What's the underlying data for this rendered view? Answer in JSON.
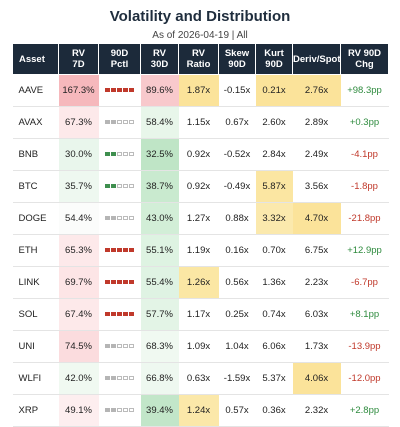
{
  "title": "Volatility and Distribution",
  "subtitle": "As of 2026-04-19 | All",
  "columns": [
    "Asset",
    "RV\n7D",
    "90D\nPctl",
    "RV\n30D",
    "RV\nRatio",
    "Skew\n90D",
    "Kurt\n90D",
    "Deriv/Spot",
    "RV 90D\nChg"
  ],
  "rows": [
    {
      "asset": "AAVE",
      "rv7d": "167.3%",
      "pctl": 5,
      "pctl_color": "red",
      "rv30d": "89.6%",
      "ratio": "1.87x",
      "skew": "-0.15x",
      "kurt": "0.21x",
      "deriv": "2.76x",
      "chg": "+98.3pp"
    },
    {
      "asset": "AVAX",
      "rv7d": "67.3%",
      "pctl": 0,
      "pctl_color": "gray",
      "rv30d": "58.4%",
      "ratio": "1.15x",
      "skew": "0.67x",
      "kurt": "2.60x",
      "deriv": "2.89x",
      "chg": "+0.3pp"
    },
    {
      "asset": "BNB",
      "rv7d": "30.0%",
      "pctl": 2,
      "pctl_color": "green",
      "rv30d": "32.5%",
      "ratio": "0.92x",
      "skew": "-0.52x",
      "kurt": "2.84x",
      "deriv": "2.49x",
      "chg": "-4.1pp"
    },
    {
      "asset": "BTC",
      "rv7d": "35.7%",
      "pctl": 2,
      "pctl_color": "green",
      "rv30d": "38.7%",
      "ratio": "0.92x",
      "skew": "-0.49x",
      "kurt": "5.87x",
      "deriv": "3.56x",
      "chg": "-1.8pp"
    },
    {
      "asset": "DOGE",
      "rv7d": "54.4%",
      "pctl": 0,
      "pctl_color": "gray",
      "rv30d": "43.0%",
      "ratio": "1.27x",
      "skew": "0.88x",
      "kurt": "3.32x",
      "deriv": "4.70x",
      "chg": "-21.8pp"
    },
    {
      "asset": "ETH",
      "rv7d": "65.3%",
      "pctl": 5,
      "pctl_color": "red",
      "rv30d": "55.1%",
      "ratio": "1.19x",
      "skew": "0.16x",
      "kurt": "0.70x",
      "deriv": "6.75x",
      "chg": "+12.9pp"
    },
    {
      "asset": "LINK",
      "rv7d": "69.7%",
      "pctl": 5,
      "pctl_color": "red",
      "rv30d": "55.4%",
      "ratio": "1.26x",
      "skew": "0.56x",
      "kurt": "1.36x",
      "deriv": "2.23x",
      "chg": "-6.7pp"
    },
    {
      "asset": "SOL",
      "rv7d": "67.4%",
      "pctl": 5,
      "pctl_color": "red",
      "rv30d": "57.7%",
      "ratio": "1.17x",
      "skew": "0.25x",
      "kurt": "0.74x",
      "deriv": "6.03x",
      "chg": "+8.1pp"
    },
    {
      "asset": "UNI",
      "rv7d": "74.5%",
      "pctl": 0,
      "pctl_color": "gray",
      "rv30d": "68.3%",
      "ratio": "1.09x",
      "skew": "1.04x",
      "kurt": "6.06x",
      "deriv": "1.73x",
      "chg": "-13.9pp"
    },
    {
      "asset": "WLFI",
      "rv7d": "42.0%",
      "pctl": 0,
      "pctl_color": "gray",
      "rv30d": "66.8%",
      "ratio": "0.63x",
      "skew": "-1.59x",
      "kurt": "5.37x",
      "deriv": "4.06x",
      "chg": "-12.0pp"
    },
    {
      "asset": "XRP",
      "rv7d": "49.1%",
      "pctl": 0,
      "pctl_color": "gray",
      "rv30d": "39.4%",
      "ratio": "1.24x",
      "skew": "0.57x",
      "kurt": "0.36x",
      "deriv": "2.32x",
      "chg": "+2.8pp"
    }
  ],
  "cell_colors": {
    "rv7d": [
      "#f6b8bc",
      "#fde9ea",
      "#e9f6ec",
      "#eef8f0",
      "#fbfcfb",
      "#fde9ea",
      "#fde5e6",
      "#fde9ea",
      "#fbdcde",
      "#f0f9f1",
      "#fdeeef"
    ],
    "rv30d": [
      "#f8c9cc",
      "#e8f6ea",
      "#bfe5c6",
      "#c9eacf",
      "#d2eed7",
      "#def3e2",
      "#dff3e3",
      "#e3f4e6",
      "#f0f9f1",
      "#eef8f0",
      "#c2e6c9"
    ],
    "ratio": [
      "#fbe39a",
      "#ffffff",
      "#ffffff",
      "#ffffff",
      "#ffffff",
      "#ffffff",
      "#fbe7a4",
      "#ffffff",
      "#ffffff",
      "#ffffff",
      "#fbe8a9"
    ],
    "kurt": [
      "#fbe39a",
      "#ffffff",
      "#ffffff",
      "#fbe6a2",
      "#fbe9ad",
      "#ffffff",
      "#ffffff",
      "#ffffff",
      "#ffffff",
      "#ffffff",
      "#ffffff"
    ],
    "deriv": [
      "#fbe39a",
      "#ffffff",
      "#ffffff",
      "#ffffff",
      "#fbe39a",
      "#ffffff",
      "#ffffff",
      "#ffffff",
      "#ffffff",
      "#fbe39a",
      "#ffffff"
    ]
  },
  "accent": {
    "header_bg": "#1c2a3a",
    "positive": "#2e8b3e",
    "negative": "#c0392b"
  }
}
